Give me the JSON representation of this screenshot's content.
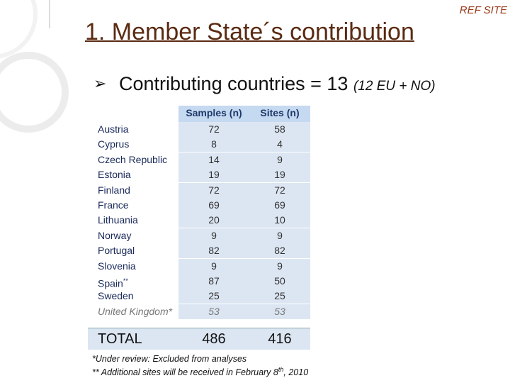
{
  "header": {
    "tag": "REF SITE",
    "title": "1. Member State´s contribution"
  },
  "bullet": {
    "text": "Contributing countries = 13",
    "detail": "(12 EU + NO)"
  },
  "table": {
    "columns": [
      "Samples (n)",
      "Sites (n)"
    ],
    "rows": [
      {
        "country": "Austria",
        "samples": 72,
        "sites": 58
      },
      {
        "country": "Cyprus",
        "samples": 8,
        "sites": 4
      },
      {
        "country": "Czech Republic",
        "samples": 14,
        "sites": 9
      },
      {
        "country": "Estonia",
        "samples": 19,
        "sites": 19
      },
      {
        "country": "Finland",
        "samples": 72,
        "sites": 72
      },
      {
        "country": "France",
        "samples": 69,
        "sites": 69
      },
      {
        "country": "Lithuania",
        "samples": 20,
        "sites": 10
      },
      {
        "country": "Norway",
        "samples": 9,
        "sites": 9
      },
      {
        "country": "Portugal",
        "samples": 82,
        "sites": 82
      },
      {
        "country": "Slovenia",
        "samples": 9,
        "sites": 9
      },
      {
        "country": "Spain",
        "mark": "**",
        "samples": 87,
        "sites": 50
      },
      {
        "country": "Sweden",
        "samples": 25,
        "sites": 25
      },
      {
        "country": "United Kingdom*",
        "style": "italic",
        "samples": 53,
        "sites": 53
      }
    ],
    "total": {
      "label": "TOTAL",
      "samples": 486,
      "sites": 416
    }
  },
  "footnotes": [
    "*Under review: Excluded from analyses",
    [
      "** Additional sites will be received in February 8",
      "th",
      ", 2010"
    ]
  ]
}
